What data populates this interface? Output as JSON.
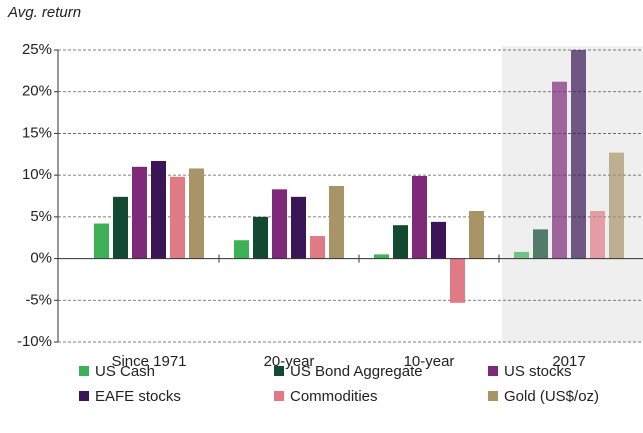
{
  "chart_data": {
    "type": "bar",
    "y_label": "Avg.  return",
    "categories": [
      "Since 1971",
      "20-year",
      "10-year",
      "2017"
    ],
    "series": [
      {
        "name": "US Cash",
        "color": "#3cb156",
        "values": [
          4.2,
          2.2,
          0.5,
          0.8
        ]
      },
      {
        "name": "US Bond Aggregate",
        "color": "#114a31",
        "values": [
          7.4,
          5.0,
          4.0,
          3.5
        ]
      },
      {
        "name": "US stocks",
        "color": "#7e2a79",
        "values": [
          11.0,
          8.3,
          9.9,
          21.2
        ]
      },
      {
        "name": "EAFE stocks",
        "color": "#3a1656",
        "values": [
          11.7,
          7.4,
          4.4,
          25.0
        ]
      },
      {
        "name": "Commodities",
        "color": "#e07a84",
        "values": [
          9.8,
          2.7,
          -5.3,
          5.7
        ]
      },
      {
        "name": "Gold (US$/oz)",
        "color": "#a89466",
        "values": [
          10.8,
          8.7,
          5.7,
          12.7
        ]
      }
    ],
    "ylim": [
      -10,
      25
    ],
    "yticks": [
      {
        "value": -10,
        "label": "-10%"
      },
      {
        "value": -5,
        "label": "-5%"
      },
      {
        "value": 0,
        "label": "0%"
      },
      {
        "value": 5,
        "label": "5%"
      },
      {
        "value": 10,
        "label": "10%"
      },
      {
        "value": 15,
        "label": "15%"
      },
      {
        "value": 20,
        "label": "20%"
      },
      {
        "value": 25,
        "label": "25%"
      }
    ],
    "grid": true,
    "shaded_category_index": 3,
    "legend": "bottom"
  }
}
